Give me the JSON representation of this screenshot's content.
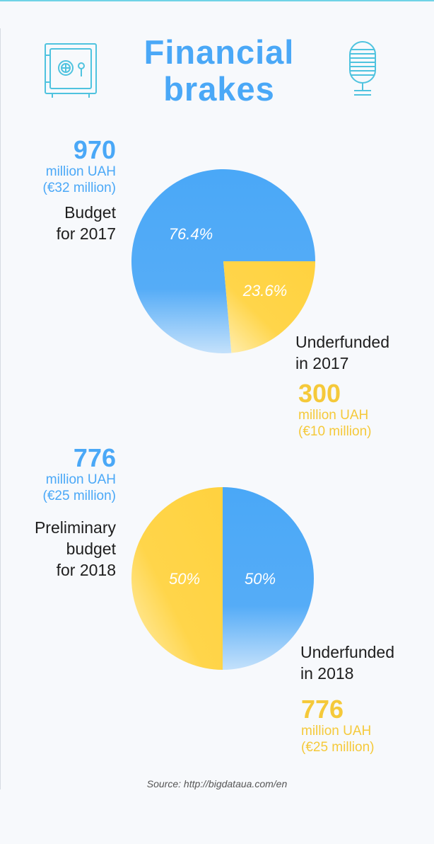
{
  "title": "Financial brakes",
  "icons": [
    "safe-icon",
    "microphone-icon"
  ],
  "colors": {
    "blue": "#4aa8f7",
    "yellow": "#f5c93a"
  },
  "source": "Source: http://bigdataua.com/en",
  "chart_data": [
    {
      "type": "pie",
      "categories": [
        "Budget for 2017",
        "Underfunded in 2017"
      ],
      "values": [
        76.4,
        23.6
      ],
      "labels": [
        "76.4%",
        "23.6%"
      ],
      "budget": {
        "value": "970",
        "unit": "million UAH",
        "eur": "(€32 million)",
        "label_lines": [
          "Budget",
          "for 2017"
        ]
      },
      "underfunded": {
        "value": "300",
        "unit": "million UAH",
        "eur": "(€10 million)",
        "label_lines": [
          "Underfunded",
          "in 2017"
        ]
      }
    },
    {
      "type": "pie",
      "categories": [
        "Preliminary budget for 2018",
        "Underfunded in 2018"
      ],
      "values": [
        50,
        50
      ],
      "labels": [
        "50%",
        "50%"
      ],
      "budget": {
        "value": "776",
        "unit": "million UAH",
        "eur": "(€25 million)",
        "label_lines": [
          "Preliminary",
          "budget",
          "for 2018"
        ]
      },
      "underfunded": {
        "value": "776",
        "unit": "million UAH",
        "eur": "(€25 million)",
        "label_lines": [
          "Underfunded",
          "in 2018"
        ]
      }
    }
  ]
}
